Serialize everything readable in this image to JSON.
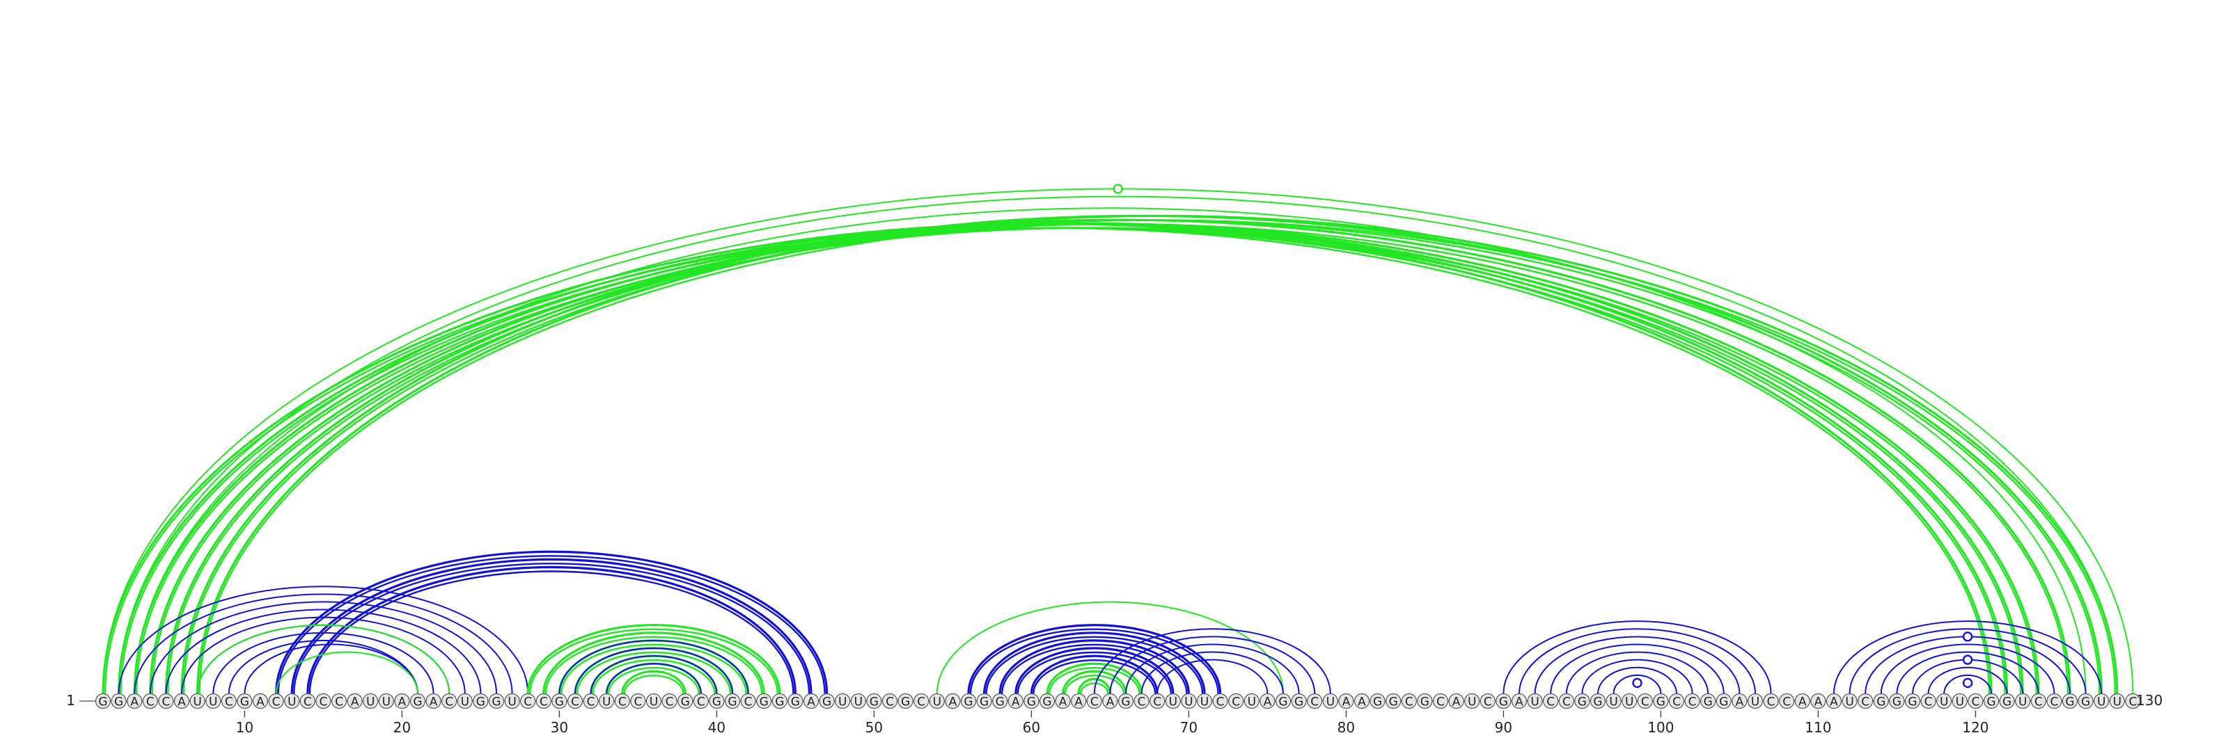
{
  "sequence": "GGACCAUUCGACUCCCAUUAGACUGGUCCGCCUCCUCGCGGCGGGAGUUGCGCUAGGGAGGAACAGCCUUUCCUAGGCUAAGGCGCAUCGAUCCGGUUCGCCGGAUCCAAAUCGGGCUUCGGUCCGGUUC",
  "start_label": "1",
  "end_label": "130",
  "tick_labels": [
    "10",
    "20",
    "30",
    "40",
    "50",
    "60",
    "70",
    "80",
    "90",
    "100",
    "110",
    "120"
  ],
  "colors": {
    "blue": "#1010dd",
    "green": "#22e622",
    "nucleotide_fill": "#e6e6e6",
    "nucleotide_stroke": "#555555"
  },
  "arc_groups": [
    {
      "color": "green",
      "pairs": [
        [
          1,
          121
        ],
        [
          2,
          122
        ],
        [
          3,
          123
        ],
        [
          4,
          124
        ],
        [
          5,
          126
        ],
        [
          6,
          128
        ],
        [
          7,
          129
        ]
      ],
      "width": "thick"
    },
    {
      "color": "green",
      "pairs": [
        [
          1,
          130
        ],
        [
          2,
          129
        ],
        [
          3,
          127
        ]
      ],
      "width": "thin"
    },
    {
      "color": "blue",
      "pairs": [
        [
          2,
          28
        ],
        [
          3,
          27
        ],
        [
          4,
          26
        ],
        [
          5,
          25
        ],
        [
          6,
          24
        ],
        [
          7,
          23
        ],
        [
          8,
          22
        ],
        [
          9,
          21
        ],
        [
          10,
          21
        ]
      ],
      "width": "thin"
    },
    {
      "color": "blue",
      "pairs": [
        [
          12,
          47
        ],
        [
          13,
          46
        ],
        [
          14,
          45
        ]
      ],
      "width": "thick"
    },
    {
      "color": "green",
      "pairs": [
        [
          7,
          23
        ],
        [
          12,
          21
        ]
      ],
      "width": "thin"
    },
    {
      "color": "green",
      "pairs": [
        [
          28,
          44
        ],
        [
          29,
          43
        ],
        [
          30,
          42
        ],
        [
          31,
          41
        ],
        [
          32,
          40
        ],
        [
          33,
          39
        ],
        [
          34,
          38
        ]
      ],
      "width": "thick"
    },
    {
      "color": "blue",
      "pairs": [
        [
          30,
          42
        ],
        [
          31,
          41
        ],
        [
          32,
          40
        ],
        [
          33,
          39
        ]
      ],
      "width": "thin"
    },
    {
      "color": "green",
      "pairs": [
        [
          54,
          76
        ]
      ],
      "width": "thin"
    },
    {
      "color": "blue",
      "pairs": [
        [
          56,
          72
        ],
        [
          57,
          71
        ],
        [
          58,
          70
        ],
        [
          59,
          69
        ],
        [
          60,
          68
        ]
      ],
      "width": "thick"
    },
    {
      "color": "green",
      "pairs": [
        [
          61,
          67
        ],
        [
          62,
          66
        ],
        [
          63,
          65
        ]
      ],
      "width": "thick"
    },
    {
      "color": "blue",
      "pairs": [
        [
          64,
          79
        ],
        [
          65,
          78
        ],
        [
          66,
          77
        ],
        [
          67,
          76
        ],
        [
          68,
          75
        ]
      ],
      "width": "thin"
    },
    {
      "color": "blue",
      "pairs": [
        [
          90,
          107
        ],
        [
          91,
          106
        ],
        [
          92,
          105
        ],
        [
          93,
          104
        ],
        [
          94,
          103
        ],
        [
          95,
          102
        ],
        [
          96,
          101
        ],
        [
          97,
          100
        ]
      ],
      "width": "thin"
    },
    {
      "color": "blue",
      "pairs": [
        [
          111,
          128
        ],
        [
          112,
          127
        ],
        [
          113,
          126
        ],
        [
          114,
          125
        ],
        [
          115,
          124
        ],
        [
          116,
          123
        ],
        [
          117,
          122
        ],
        [
          118,
          121
        ]
      ],
      "width": "thin"
    }
  ],
  "markers": [
    {
      "color": "green",
      "on_pair": [
        1,
        130
      ]
    },
    {
      "color": "blue",
      "on_pair": [
        98,
        99
      ]
    },
    {
      "color": "blue",
      "on_pair": [
        119,
        120
      ]
    },
    {
      "color": "blue",
      "on_pair": [
        116,
        123
      ]
    },
    {
      "color": "blue",
      "on_pair": [
        113,
        126
      ]
    }
  ]
}
